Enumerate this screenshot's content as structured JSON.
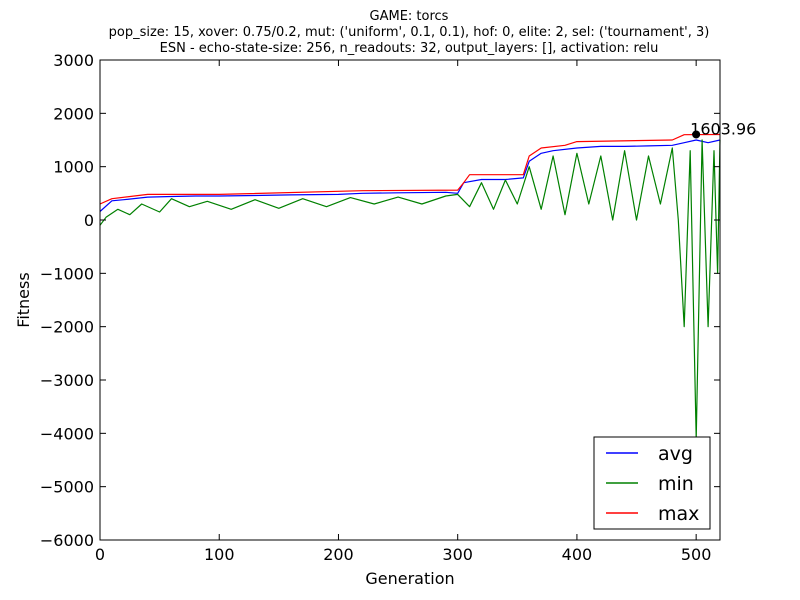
{
  "chart_data": {
    "type": "line",
    "title": "GAME: torcs",
    "subtitle_lines": [
      "pop_size: 15, xover: 0.75/0.2, mut: ('uniform', 0.1, 0.1), hof: 0, elite: 2, sel: ('tournament', 3)",
      "ESN - echo-state-size: 256, n_readouts: 32, output_layers: [], activation: relu"
    ],
    "xlabel": "Generation",
    "ylabel": "Fitness",
    "xlim": [
      0,
      520
    ],
    "ylim": [
      -6000,
      3000
    ],
    "x_ticks": [
      0,
      100,
      200,
      300,
      400,
      500
    ],
    "y_ticks": [
      3000,
      2000,
      1000,
      0,
      -1000,
      -2000,
      -3000,
      -4000,
      -5000,
      -6000
    ],
    "grid": false,
    "legend_position": "bottom-right",
    "series": [
      {
        "name": "avg",
        "color": "#0000ff",
        "points": [
          [
            0,
            160
          ],
          [
            10,
            360
          ],
          [
            20,
            380
          ],
          [
            40,
            430
          ],
          [
            60,
            440
          ],
          [
            80,
            450
          ],
          [
            100,
            450
          ],
          [
            130,
            460
          ],
          [
            160,
            470
          ],
          [
            200,
            480
          ],
          [
            220,
            500
          ],
          [
            250,
            510
          ],
          [
            290,
            520
          ],
          [
            300,
            500
          ],
          [
            305,
            700
          ],
          [
            320,
            760
          ],
          [
            340,
            760
          ],
          [
            355,
            790
          ],
          [
            360,
            1100
          ],
          [
            370,
            1250
          ],
          [
            380,
            1300
          ],
          [
            400,
            1350
          ],
          [
            420,
            1380
          ],
          [
            440,
            1380
          ],
          [
            460,
            1390
          ],
          [
            480,
            1400
          ],
          [
            490,
            1450
          ],
          [
            500,
            1500
          ],
          [
            510,
            1450
          ],
          [
            520,
            1500
          ]
        ]
      },
      {
        "name": "min",
        "color": "#008000",
        "points": [
          [
            0,
            -100
          ],
          [
            5,
            50
          ],
          [
            15,
            200
          ],
          [
            25,
            100
          ],
          [
            35,
            300
          ],
          [
            50,
            150
          ],
          [
            60,
            400
          ],
          [
            75,
            250
          ],
          [
            90,
            350
          ],
          [
            110,
            200
          ],
          [
            130,
            380
          ],
          [
            150,
            220
          ],
          [
            170,
            400
          ],
          [
            190,
            250
          ],
          [
            210,
            420
          ],
          [
            230,
            300
          ],
          [
            250,
            430
          ],
          [
            270,
            300
          ],
          [
            290,
            450
          ],
          [
            300,
            480
          ],
          [
            310,
            250
          ],
          [
            320,
            700
          ],
          [
            330,
            200
          ],
          [
            340,
            750
          ],
          [
            350,
            300
          ],
          [
            360,
            1000
          ],
          [
            370,
            200
          ],
          [
            380,
            1200
          ],
          [
            390,
            100
          ],
          [
            400,
            1250
          ],
          [
            410,
            300
          ],
          [
            420,
            1200
          ],
          [
            430,
            0
          ],
          [
            440,
            1300
          ],
          [
            450,
            0
          ],
          [
            460,
            1200
          ],
          [
            470,
            300
          ],
          [
            480,
            1350
          ],
          [
            485,
            0
          ],
          [
            490,
            -2000
          ],
          [
            495,
            1300
          ],
          [
            500,
            -4100
          ],
          [
            505,
            1500
          ],
          [
            510,
            -2000
          ],
          [
            515,
            1300
          ],
          [
            518,
            -1000
          ],
          [
            520,
            1500
          ]
        ]
      },
      {
        "name": "max",
        "color": "#ff0000",
        "points": [
          [
            0,
            300
          ],
          [
            10,
            400
          ],
          [
            40,
            480
          ],
          [
            100,
            480
          ],
          [
            220,
            550
          ],
          [
            300,
            560
          ],
          [
            305,
            700
          ],
          [
            310,
            850
          ],
          [
            355,
            850
          ],
          [
            360,
            1200
          ],
          [
            370,
            1350
          ],
          [
            390,
            1400
          ],
          [
            400,
            1470
          ],
          [
            480,
            1500
          ],
          [
            490,
            1600
          ],
          [
            520,
            1604
          ]
        ]
      }
    ],
    "annotations": [
      {
        "text": "1603.96",
        "x": 500,
        "y": 1604
      }
    ]
  }
}
